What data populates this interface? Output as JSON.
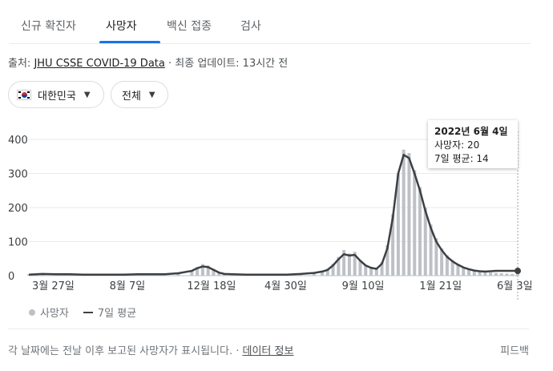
{
  "tabs": [
    {
      "label": "신규 확진자",
      "active": false
    },
    {
      "label": "사망자",
      "active": true
    },
    {
      "label": "백신 접종",
      "active": false
    },
    {
      "label": "검사",
      "active": false
    }
  ],
  "source": {
    "prefix": "출처: ",
    "link": "JHU CSSE COVID-19 Data",
    "sep": " · ",
    "updated": "최종 업데이트: 13시간 전"
  },
  "filters": {
    "region": {
      "label": "대한민국",
      "icon": "south-korea-flag-icon"
    },
    "scope": {
      "label": "전체"
    }
  },
  "tooltip": {
    "date": "2022년 6월 4일",
    "deaths_line": "사망자: 20",
    "avg_line": "7일 평균: 14"
  },
  "legend": {
    "series1": "사망자",
    "series2": "7일 평균"
  },
  "footer": {
    "note": "각 날짜에는 전날 이후 보고된 사망자가 표시됩니다.",
    "sep": " · ",
    "link": "데이터 정보"
  },
  "feedback": "피드백",
  "colors": {
    "accent": "#1a73e8",
    "bars": "#bdc1c6",
    "avg_line": "#3c4043",
    "grid": "#e8eaed"
  },
  "chart_data": {
    "type": "bar",
    "title": "",
    "xlabel": "",
    "ylabel": "",
    "ylim": [
      0,
      400
    ],
    "yticks": [
      0,
      100,
      200,
      300,
      400
    ],
    "x_tick_labels": [
      "3월 27일",
      "8월 7일",
      "12월 18일",
      "4월 30일",
      "9월 10일",
      "1월 21일",
      "6월 3일"
    ],
    "grid": true,
    "series": [
      {
        "name": "사망자",
        "kind": "bar",
        "x": [
          0,
          5,
          10,
          15,
          20,
          25,
          30,
          35,
          40,
          45,
          50,
          55,
          60,
          62,
          64,
          66,
          68,
          70,
          72,
          75,
          80,
          85,
          90,
          95,
          100,
          105,
          108,
          110,
          112,
          114,
          116,
          118,
          120,
          122,
          124,
          126,
          128,
          130,
          132,
          134,
          136,
          138,
          140,
          142,
          144,
          146,
          148,
          150,
          152,
          154,
          156,
          158,
          160,
          162,
          164,
          166,
          168,
          170,
          172,
          174,
          176,
          178,
          180
        ],
        "values": [
          4,
          6,
          5,
          4,
          3,
          3,
          4,
          3,
          5,
          5,
          4,
          9,
          16,
          25,
          34,
          30,
          20,
          10,
          6,
          4,
          3,
          3,
          3,
          4,
          6,
          10,
          14,
          20,
          35,
          55,
          75,
          65,
          70,
          45,
          30,
          25,
          20,
          40,
          90,
          180,
          300,
          370,
          360,
          310,
          260,
          200,
          150,
          110,
          80,
          60,
          45,
          35,
          25,
          20,
          15,
          12,
          10,
          9,
          8,
          7,
          6,
          5,
          20
        ]
      },
      {
        "name": "7일 평균",
        "kind": "line",
        "x": [
          0,
          5,
          10,
          15,
          20,
          25,
          30,
          35,
          40,
          45,
          50,
          55,
          60,
          62,
          64,
          66,
          68,
          70,
          72,
          75,
          80,
          85,
          90,
          95,
          100,
          105,
          108,
          110,
          112,
          114,
          116,
          118,
          120,
          122,
          124,
          126,
          128,
          130,
          132,
          134,
          136,
          138,
          140,
          142,
          144,
          146,
          148,
          150,
          152,
          154,
          156,
          158,
          160,
          162,
          164,
          166,
          168,
          170,
          172,
          174,
          176,
          178,
          180
        ],
        "values": [
          3,
          5,
          4,
          4,
          3,
          3,
          3,
          3,
          4,
          4,
          4,
          7,
          14,
          22,
          27,
          25,
          17,
          9,
          5,
          4,
          3,
          3,
          3,
          3,
          5,
          8,
          12,
          17,
          30,
          48,
          63,
          59,
          61,
          44,
          30,
          23,
          20,
          35,
          80,
          170,
          300,
          355,
          345,
          300,
          250,
          190,
          140,
          100,
          75,
          55,
          42,
          32,
          24,
          19,
          15,
          13,
          12,
          13,
          14,
          14,
          14,
          14,
          14
        ]
      }
    ]
  }
}
